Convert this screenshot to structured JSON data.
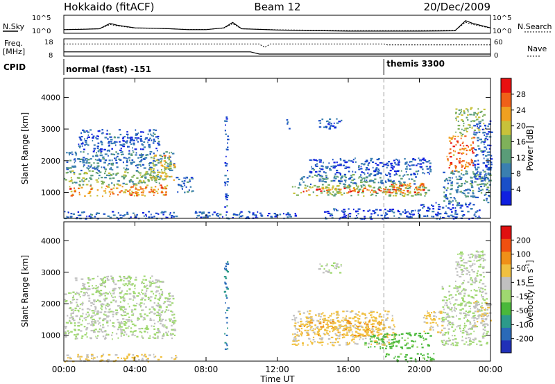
{
  "header": {
    "station": "Hokkaido (fitACF)",
    "beam": "Beam 12",
    "date": "20/Dec/2009"
  },
  "strip_labels": {
    "nsky": "N.Sky",
    "nsearch": "N.Search",
    "freq_line1": "Freq.",
    "freq_line2": "[MHz]",
    "nave": "Nave",
    "cpid": "CPID",
    "noise_tick_top": "10^5",
    "noise_tick_bottom": "10^0",
    "freq_tick_top": "18",
    "freq_tick_bottom": "8",
    "nave_tick_top": "60",
    "nave_tick_bottom": "0"
  },
  "cpid_segments": [
    {
      "label": "normal (fast) -151",
      "start_hour": 0
    },
    {
      "label": "themis 3300",
      "start_hour": 18
    }
  ],
  "x_axis": {
    "label": "Time UT",
    "range_hours": [
      0,
      24
    ],
    "ticks": [
      "00:00",
      "04:00",
      "08:00",
      "12:00",
      "16:00",
      "20:00",
      "00:00"
    ],
    "tick_hours": [
      0,
      4,
      8,
      12,
      16,
      20,
      24
    ]
  },
  "chart_data": [
    {
      "type": "heatmap",
      "title": "",
      "xlabel": "Time UT",
      "ylabel": "Slant Range [km]",
      "xlim": [
        0,
        24
      ],
      "ylim": [
        180,
        4600
      ],
      "yticks": [
        1000,
        2000,
        3000,
        4000
      ],
      "colorbar": {
        "label": "Power [dB]",
        "ticks": [
          "4",
          "8",
          "12",
          "16",
          "20",
          "24",
          "28"
        ],
        "min": 0,
        "max": 32,
        "colors": [
          "#1020e0",
          "#1a4fc8",
          "#3a7fb0",
          "#5a9c78",
          "#7fb15a",
          "#c8c23a",
          "#f0a020",
          "#f06018",
          "#e81010"
        ]
      },
      "regions": [
        {
          "t0": 0.0,
          "t1": 6.3,
          "r0": 180,
          "r1": 420,
          "value": 6
        },
        {
          "t0": 0.3,
          "t1": 5.8,
          "r0": 900,
          "r1": 1250,
          "value": 24
        },
        {
          "t0": 0.0,
          "t1": 5.6,
          "r0": 1250,
          "r1": 1700,
          "value": 14
        },
        {
          "t0": 0.1,
          "t1": 6.2,
          "r0": 1700,
          "r1": 2300,
          "value": 9
        },
        {
          "t0": 0.8,
          "t1": 5.3,
          "r0": 2300,
          "r1": 3000,
          "value": 6
        },
        {
          "t0": 4.8,
          "t1": 6.2,
          "r0": 1400,
          "r1": 2200,
          "value": 20
        },
        {
          "t0": 6.3,
          "t1": 7.2,
          "r0": 1000,
          "r1": 1500,
          "value": 8
        },
        {
          "t0": 7.3,
          "t1": 11.8,
          "r0": 180,
          "r1": 420,
          "value": 6
        },
        {
          "t0": 11.8,
          "t1": 13.2,
          "r0": 180,
          "r1": 380,
          "value": 6
        },
        {
          "t0": 12.8,
          "t1": 20.6,
          "r0": 900,
          "r1": 1250,
          "value": 16
        },
        {
          "t0": 13.2,
          "t1": 19.0,
          "r0": 1000,
          "r1": 1150,
          "value": 26
        },
        {
          "t0": 13.2,
          "t1": 20.0,
          "r0": 1250,
          "r1": 1600,
          "value": 10
        },
        {
          "t0": 13.8,
          "t1": 20.6,
          "r0": 1600,
          "r1": 2100,
          "value": 6
        },
        {
          "t0": 14.3,
          "t1": 15.6,
          "r0": 3000,
          "r1": 3350,
          "value": 6
        },
        {
          "t0": 14.5,
          "t1": 20.0,
          "r0": 180,
          "r1": 500,
          "value": 5
        },
        {
          "t0": 18.0,
          "t1": 20.3,
          "r0": 1000,
          "r1": 1300,
          "value": 26
        },
        {
          "t0": 20.0,
          "t1": 23.4,
          "r0": 180,
          "r1": 700,
          "value": 5
        },
        {
          "t0": 21.3,
          "t1": 24.0,
          "r0": 700,
          "r1": 1700,
          "value": 10
        },
        {
          "t0": 21.5,
          "t1": 23.0,
          "r0": 1700,
          "r1": 2800,
          "value": 26
        },
        {
          "t0": 22.0,
          "t1": 23.6,
          "r0": 2800,
          "r1": 3700,
          "value": 16
        },
        {
          "t0": 23.0,
          "t1": 24.0,
          "r0": 1400,
          "r1": 3300,
          "value": 6
        },
        {
          "t0": 9.0,
          "t1": 9.2,
          "r0": 500,
          "r1": 3400,
          "value": 6
        },
        {
          "t0": 12.5,
          "t1": 12.7,
          "r0": 3000,
          "r1": 3350,
          "value": 6
        }
      ]
    },
    {
      "type": "heatmap",
      "title": "",
      "xlabel": "Time UT",
      "ylabel": "Slant Range [km]",
      "xlim": [
        0,
        24
      ],
      "ylim": [
        180,
        4600
      ],
      "yticks": [
        1000,
        2000,
        3000,
        4000
      ],
      "colorbar": {
        "label": "Velocity [m s^-1]",
        "ticks": [
          "200",
          "100",
          "50",
          "15",
          "-15",
          "-50",
          "-100",
          "-200"
        ],
        "min": -250,
        "max": 250,
        "colors": [
          "#2030b8",
          "#2a6ab8",
          "#2c9a8a",
          "#4ab83a",
          "#9fd870",
          "#c0c0c0",
          "#f0c040",
          "#f09018",
          "#f05010",
          "#e01010"
        ]
      },
      "regions": [
        {
          "t0": 0.0,
          "t1": 6.3,
          "r0": 180,
          "r1": 420,
          "value": 60
        },
        {
          "t0": 0.0,
          "t1": 6.2,
          "r0": 900,
          "r1": 2400,
          "value": 0
        },
        {
          "t0": 0.6,
          "t1": 5.5,
          "r0": 2400,
          "r1": 2900,
          "value": 0
        },
        {
          "t0": 9.0,
          "t1": 9.2,
          "r0": 500,
          "r1": 3400,
          "value": -150
        },
        {
          "t0": 12.8,
          "t1": 18.6,
          "r0": 700,
          "r1": 1800,
          "value": 60
        },
        {
          "t0": 13.2,
          "t1": 17.8,
          "r0": 1000,
          "r1": 1500,
          "value": 90
        },
        {
          "t0": 16.8,
          "t1": 20.6,
          "r0": 600,
          "r1": 1100,
          "value": -70
        },
        {
          "t0": 18.0,
          "t1": 21.0,
          "r0": 180,
          "r1": 450,
          "value": -70
        },
        {
          "t0": 14.3,
          "t1": 15.6,
          "r0": 3000,
          "r1": 3350,
          "value": 0
        },
        {
          "t0": 20.2,
          "t1": 21.3,
          "r0": 1100,
          "r1": 1800,
          "value": 60
        },
        {
          "t0": 21.2,
          "t1": 23.8,
          "r0": 700,
          "r1": 2600,
          "value": 0
        },
        {
          "t0": 22.0,
          "t1": 23.6,
          "r0": 2600,
          "r1": 3700,
          "value": 0
        },
        {
          "t0": 23.0,
          "t1": 24.0,
          "r0": 1300,
          "r1": 2100,
          "value": 45
        }
      ]
    }
  ],
  "noise_sky_series": {
    "x_hours": [
      0,
      1,
      2,
      2.6,
      3,
      4,
      5,
      6,
      7,
      8,
      9,
      9.5,
      10,
      12,
      14,
      16,
      18,
      20,
      22,
      22.6,
      23,
      24
    ],
    "level": [
      0.2,
      0.22,
      0.25,
      0.55,
      0.45,
      0.3,
      0.28,
      0.25,
      0.2,
      0.2,
      0.3,
      0.6,
      0.25,
      0.18,
      0.15,
      0.12,
      0.12,
      0.12,
      0.14,
      0.7,
      0.55,
      0.3
    ]
  },
  "freq_series": {
    "x_hours": [
      0,
      10.5,
      11,
      24
    ],
    "level": [
      0.25,
      0.25,
      0.12,
      0.12
    ]
  },
  "nave_series": {
    "x_hours": [
      0,
      11,
      11.3,
      11.6,
      18,
      18.2,
      24
    ],
    "level": [
      0.7,
      0.7,
      0.5,
      0.7,
      0.7,
      0.65,
      0.65
    ]
  },
  "marker_hour": 18
}
